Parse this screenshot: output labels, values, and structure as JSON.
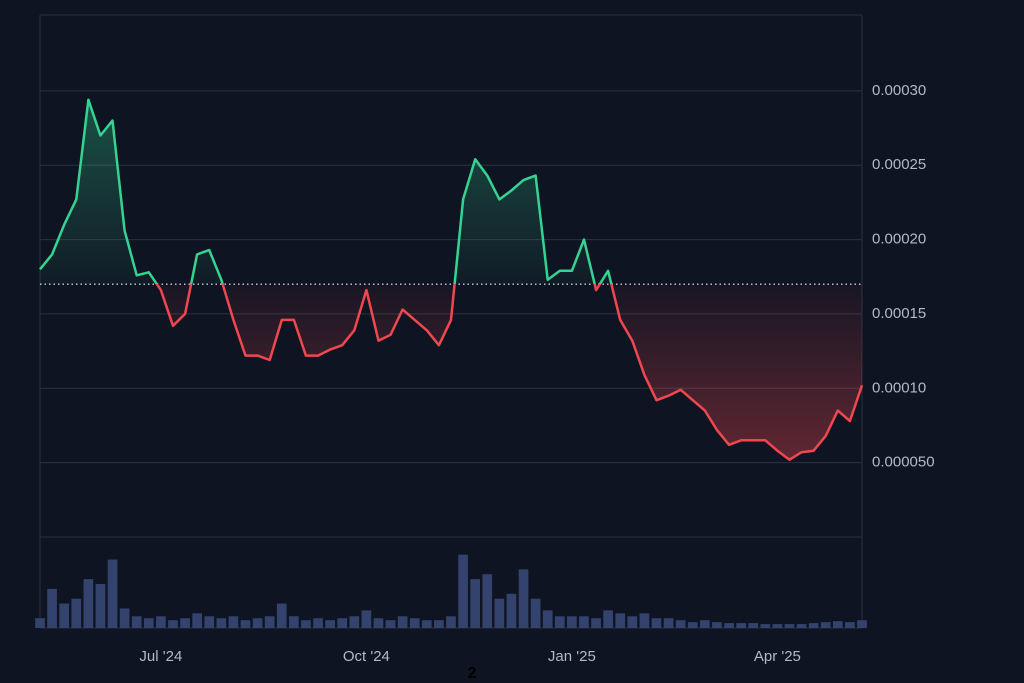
{
  "chart_data": {
    "type": "baseline",
    "categories": [
      null,
      null,
      null,
      null,
      null,
      null,
      null,
      null,
      null,
      null,
      "Jul '24",
      null,
      null,
      null,
      null,
      null,
      null,
      null,
      null,
      null,
      null,
      null,
      null,
      null,
      null,
      null,
      null,
      "Oct '24",
      null,
      null,
      null,
      null,
      null,
      null,
      null,
      null,
      null,
      null,
      null,
      null,
      null,
      null,
      null,
      null,
      "Jan '25",
      null,
      null,
      null,
      null,
      null,
      null,
      null,
      null,
      null,
      null,
      null,
      null,
      null,
      null,
      null,
      null,
      "Apr '25",
      null,
      null,
      null,
      null,
      null,
      null,
      null
    ],
    "values": [
      0.00018,
      0.00019,
      0.00021,
      0.000227,
      0.000294,
      0.00027,
      0.00028,
      0.000206,
      0.000176,
      0.000178,
      0.000166,
      0.000142,
      0.00015,
      0.00019,
      0.000193,
      0.000173,
      0.000146,
      0.000122,
      0.000122,
      0.000119,
      0.000146,
      0.000146,
      0.000122,
      0.000122,
      0.000126,
      0.000129,
      0.000139,
      0.000166,
      0.000132,
      0.000136,
      0.000153,
      0.000146,
      0.000139,
      0.000129,
      0.000146,
      0.000227,
      0.000254,
      0.000243,
      0.000227,
      0.000233,
      0.00024,
      0.000243,
      0.000173,
      0.000179,
      0.000179,
      0.0002,
      0.000166,
      0.000179,
      0.000146,
      0.000132,
      0.000109,
      9.2e-05,
      9.5e-05,
      9.9e-05,
      9.2e-05,
      8.5e-05,
      7.2e-05,
      6.2e-05,
      6.5e-05,
      6.5e-05,
      6.5e-05,
      5.8e-05,
      5.2e-05,
      5.7e-05,
      5.8e-05,
      6.8e-05,
      8.5e-05,
      7.8e-05,
      0.000102
    ],
    "baseline": 0.00017,
    "up_color": "#34d391",
    "down_color": "#f0474f",
    "ylim": [
      0,
      0.000351
    ],
    "yticks": [
      {
        "value": 5e-05,
        "label": "0.000050"
      },
      {
        "value": 0.0001,
        "label": "0.00010"
      },
      0.00015,
      {
        "value": 0.0002,
        "label": "0.00020"
      },
      0.00025,
      {
        "value": 0.0003,
        "label": "0.00030"
      }
    ],
    "grid": true,
    "volume": [
      10,
      40,
      25,
      30,
      50,
      45,
      70,
      20,
      12,
      10,
      12,
      8,
      10,
      15,
      12,
      10,
      12,
      8,
      10,
      12,
      25,
      12,
      8,
      10,
      8,
      10,
      12,
      18,
      10,
      8,
      12,
      10,
      8,
      8,
      12,
      75,
      50,
      55,
      30,
      35,
      60,
      30,
      18,
      12,
      12,
      12,
      10,
      18,
      15,
      12,
      15,
      10,
      10,
      8,
      6,
      8,
      6,
      5,
      5,
      5,
      4,
      4,
      4,
      4,
      5,
      6,
      7,
      6,
      8
    ],
    "volume_ylim": [
      0,
      90
    ],
    "volume_color": "#34426e",
    "footnote": "2"
  }
}
